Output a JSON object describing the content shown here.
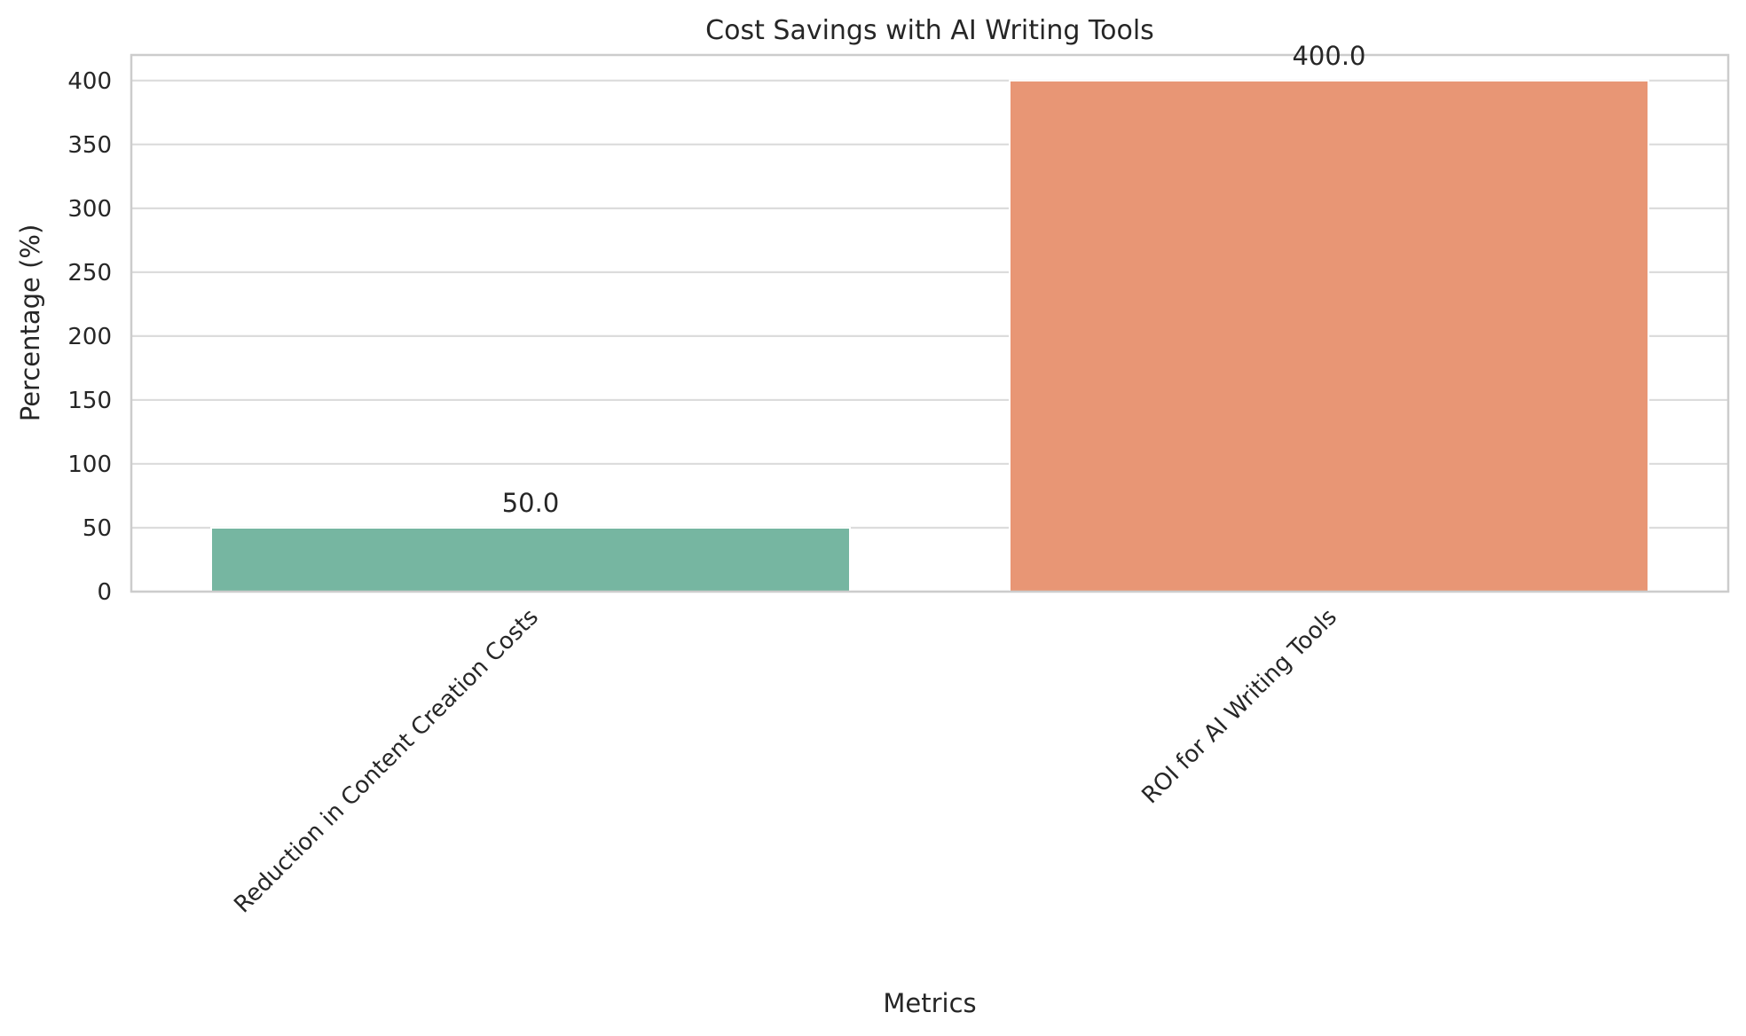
{
  "chart_data": {
    "type": "bar",
    "title": "Cost Savings with AI Writing Tools",
    "xlabel": "Metrics",
    "ylabel": "Percentage (%)",
    "categories": [
      "Reduction in Content Creation Costs",
      "ROI for AI Writing Tools"
    ],
    "values": [
      50.0,
      400.0
    ],
    "value_labels": [
      "50.0",
      "400.0"
    ],
    "colors": [
      "#76b6a1",
      "#e89675"
    ],
    "ylim": [
      0,
      420
    ],
    "yticks": [
      0,
      50,
      100,
      150,
      200,
      250,
      300,
      350,
      400
    ],
    "grid": true,
    "legend": "none"
  }
}
